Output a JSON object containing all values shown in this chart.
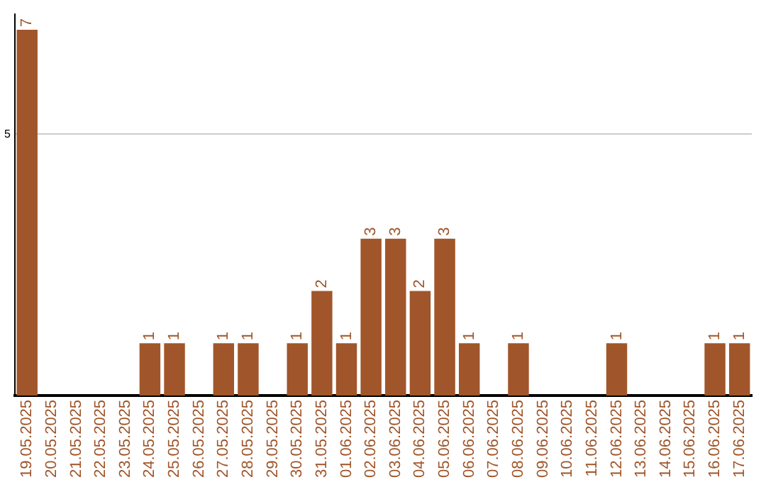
{
  "chart_data": {
    "type": "bar",
    "categories": [
      "19.05.2025",
      "20.05.2025",
      "21.05.2025",
      "22.05.2025",
      "23.05.2025",
      "24.05.2025",
      "25.05.2025",
      "26.05.2025",
      "27.05.2025",
      "28.05.2025",
      "29.05.2025",
      "30.05.2025",
      "31.05.2025",
      "01.06.2025",
      "02.06.2025",
      "03.06.2025",
      "04.06.2025",
      "05.06.2025",
      "06.06.2025",
      "07.06.2025",
      "08.06.2025",
      "09.06.2025",
      "10.06.2025",
      "11.06.2025",
      "12.06.2025",
      "13.06.2025",
      "14.06.2025",
      "15.06.2025",
      "16.06.2025",
      "17.06.2025"
    ],
    "values": [
      7,
      0,
      0,
      0,
      0,
      1,
      1,
      0,
      1,
      1,
      0,
      1,
      2,
      1,
      3,
      3,
      2,
      3,
      1,
      0,
      1,
      0,
      0,
      0,
      1,
      0,
      0,
      0,
      1,
      1
    ],
    "value_labels": [
      "7",
      null,
      null,
      null,
      null,
      "1",
      "1",
      null,
      "1",
      "1",
      null,
      "1",
      "2",
      "1",
      "3",
      "3",
      "2",
      "3",
      "1",
      null,
      "1",
      null,
      null,
      null,
      "1",
      null,
      null,
      null,
      "1",
      "1"
    ],
    "color": "#a0562a",
    "ylim": [
      0,
      7.3
    ],
    "yticks": [
      5
    ],
    "grid": "y",
    "legend": false
  }
}
